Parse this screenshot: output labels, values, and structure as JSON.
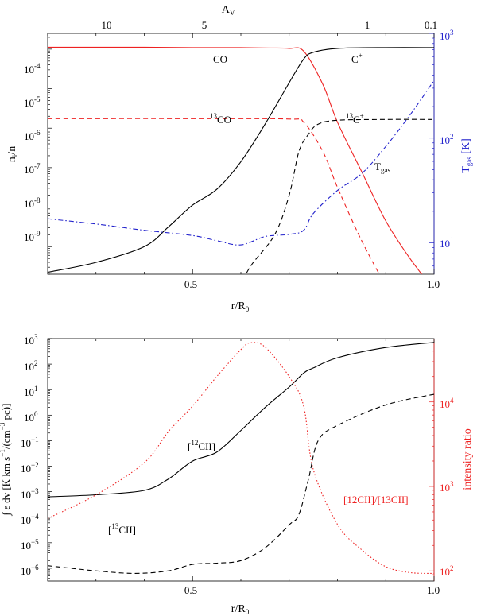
{
  "chart_data": [
    {
      "type": "line",
      "panel": "top",
      "xlabel": "r/R",
      "xlabel_sub": "0",
      "x_ticks": [
        "0.5",
        "1.0"
      ],
      "top_axis_label": "A",
      "top_axis_label_sub": "V",
      "top_axis_ticks": [
        "10",
        "5",
        "1",
        "0.1"
      ],
      "ylabel": "n",
      "ylabel_sub": "i",
      "ylabel_tail": "/n",
      "y_ticks": [
        "10",
        "10",
        "10",
        "10",
        "10",
        "10"
      ],
      "y_tick_exps": [
        "-4",
        "-5",
        "-6",
        "-7",
        "-8",
        "-9"
      ],
      "right_ylabel": "T",
      "right_ylabel_sub": "gas",
      "right_ylabel_tail": " [K]",
      "right_ticks": [
        "10",
        "10",
        "10"
      ],
      "right_tick_exps": [
        "3",
        "2",
        "1"
      ],
      "xlim": [
        0.2,
        1.0
      ],
      "ylim_log10": [
        -9.7,
        -3.6
      ],
      "right_ylim_log10": [
        0.7,
        3.0
      ],
      "series": [
        {
          "name": "CO",
          "style": "solid",
          "color": "#ee2222",
          "axis": "left",
          "x": [
            0.2,
            0.3,
            0.4,
            0.5,
            0.6,
            0.66,
            0.7,
            0.73,
            0.77,
            0.8,
            0.85,
            0.9,
            0.95,
            1.0
          ],
          "log10_values": [
            -3.95,
            -3.95,
            -3.95,
            -3.96,
            -3.96,
            -3.97,
            -3.98,
            -4.05,
            -4.9,
            -5.85,
            -7.1,
            -8.35,
            -9.3,
            -10.1
          ]
        },
        {
          "name": "C+",
          "style": "solid",
          "color": "#000000",
          "axis": "left",
          "x": [
            0.2,
            0.3,
            0.4,
            0.45,
            0.5,
            0.55,
            0.6,
            0.65,
            0.7,
            0.73,
            0.75,
            0.8,
            0.9,
            1.0
          ],
          "log10_values": [
            -9.65,
            -9.4,
            -9.0,
            -8.5,
            -7.95,
            -7.55,
            -6.85,
            -5.9,
            -4.85,
            -4.25,
            -4.08,
            -3.98,
            -3.96,
            -3.96
          ]
        },
        {
          "name": "13CO",
          "style": "dashed",
          "color": "#ee2222",
          "axis": "left",
          "x": [
            0.2,
            0.5,
            0.7,
            0.73,
            0.77,
            0.8,
            0.85,
            0.9
          ],
          "log10_values": [
            -5.76,
            -5.76,
            -5.77,
            -5.85,
            -6.6,
            -7.5,
            -8.85,
            -10.0
          ]
        },
        {
          "name": "13C+",
          "style": "dashed",
          "color": "#000000",
          "axis": "left",
          "x": [
            0.59,
            0.62,
            0.67,
            0.7,
            0.72,
            0.74,
            0.76,
            0.8,
            0.9,
            1.0
          ],
          "log10_values": [
            -10.2,
            -9.5,
            -8.7,
            -7.7,
            -6.6,
            -6.15,
            -5.9,
            -5.8,
            -5.78,
            -5.78
          ]
        },
        {
          "name": "Tgas",
          "style": "dashdot",
          "color": "#2222cc",
          "axis": "right",
          "x": [
            0.2,
            0.3,
            0.4,
            0.5,
            0.55,
            0.6,
            0.65,
            0.7,
            0.73,
            0.75,
            0.8,
            0.85,
            0.9,
            0.95,
            1.0
          ],
          "log10_values": [
            1.23,
            1.18,
            1.12,
            1.07,
            1.02,
            0.98,
            1.06,
            1.08,
            1.12,
            1.28,
            1.5,
            1.66,
            1.92,
            2.22,
            2.55
          ]
        }
      ],
      "annotations": [
        {
          "text": "CO",
          "sup": ""
        },
        {
          "text": "C",
          "sup": "+"
        },
        {
          "text": "CO",
          "sup_prefix": "13"
        },
        {
          "text": "C",
          "sup_prefix": "13",
          "sup": "+"
        },
        {
          "text": "T",
          "sub": "gas"
        }
      ]
    },
    {
      "type": "line",
      "panel": "bottom",
      "xlabel": "r/R",
      "xlabel_sub": "0",
      "x_ticks": [
        "0.5",
        "1.0"
      ],
      "ylabel": "∫ ε dv [K km s",
      "ylabel_sup": "−1",
      "ylabel_mid": "/(cm",
      "ylabel_sup2": "−3",
      "ylabel_tail": " pc)]",
      "y_ticks": [
        "10",
        "10",
        "10",
        "10",
        "10",
        "10",
        "10",
        "10",
        "10",
        "10"
      ],
      "y_tick_exps": [
        "3",
        "2",
        "1",
        "0",
        "−1",
        "−2",
        "−3",
        "−4",
        "−5",
        "−6"
      ],
      "right_ylabel": "intensity ratio",
      "right_ticks": [
        "10",
        "10",
        "10"
      ],
      "right_tick_exps": [
        "4",
        "3",
        "2"
      ],
      "xlim": [
        0.2,
        1.0
      ],
      "ylim_log10": [
        -6.5,
        3.0
      ],
      "right_ylim_log10": [
        1.88,
        4.75
      ],
      "series": [
        {
          "name": "[12CII]",
          "style": "solid",
          "color": "#000000",
          "axis": "left",
          "x": [
            0.2,
            0.3,
            0.4,
            0.45,
            0.5,
            0.55,
            0.6,
            0.65,
            0.7,
            0.73,
            0.75,
            0.8,
            0.9,
            1.0
          ],
          "log10_values": [
            -3.2,
            -3.12,
            -2.95,
            -2.5,
            -1.8,
            -1.45,
            -0.6,
            0.3,
            1.1,
            1.65,
            1.85,
            2.25,
            2.65,
            2.85
          ]
        },
        {
          "name": "[13CII]",
          "style": "dashed",
          "color": "#000000",
          "axis": "left",
          "x": [
            0.2,
            0.3,
            0.38,
            0.45,
            0.5,
            0.55,
            0.6,
            0.65,
            0.7,
            0.72,
            0.74,
            0.76,
            0.8,
            0.9,
            1.0
          ],
          "log10_values": [
            -5.9,
            -6.1,
            -6.2,
            -6.1,
            -5.85,
            -5.8,
            -5.7,
            -5.2,
            -4.3,
            -3.9,
            -2.5,
            -1.0,
            -0.4,
            0.4,
            0.82
          ]
        },
        {
          "name": "[12CII]/[13CII]",
          "style": "dotted",
          "color": "#ee2222",
          "axis": "right",
          "x": [
            0.2,
            0.3,
            0.4,
            0.45,
            0.5,
            0.55,
            0.6,
            0.62,
            0.65,
            0.7,
            0.73,
            0.75,
            0.8,
            0.85,
            0.9,
            0.95,
            1.0
          ],
          "log10_values": [
            2.62,
            2.9,
            3.28,
            3.65,
            3.95,
            4.3,
            4.62,
            4.7,
            4.65,
            4.3,
            3.95,
            3.2,
            2.55,
            2.25,
            2.05,
            1.98,
            1.97
          ]
        }
      ],
      "annotations": [
        {
          "text": "CII]",
          "prefix": "[",
          "sup_prefix": "12"
        },
        {
          "text": "CII]",
          "prefix": "[",
          "sup_prefix": "13"
        },
        {
          "text": "[12CII]/[13CII]"
        }
      ]
    }
  ]
}
